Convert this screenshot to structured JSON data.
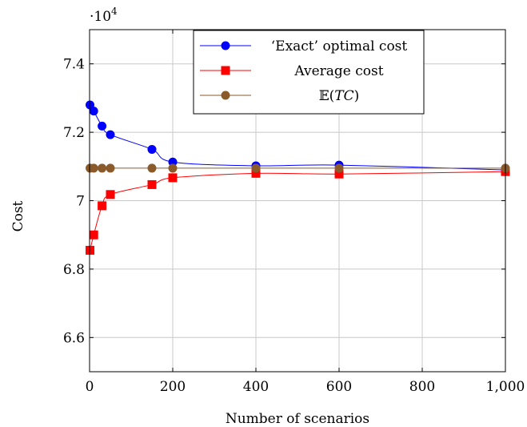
{
  "chart_data": {
    "type": "line",
    "xlabel": "Number of scenarios",
    "ylabel": "Cost",
    "y_multiplier_label": "·10",
    "y_multiplier_exponent": "4",
    "xlim": [
      0,
      1000
    ],
    "ylim": [
      6.5,
      7.5
    ],
    "x_ticks": [
      0,
      200,
      400,
      600,
      800,
      1000
    ],
    "x_tick_labels": [
      "0",
      "200",
      "400",
      "600",
      "800",
      "1,000"
    ],
    "y_ticks": [
      6.6,
      6.8,
      7.0,
      7.2,
      7.4
    ],
    "y_tick_labels": [
      "6.6",
      "6.8",
      "7",
      "7.2",
      "7.4"
    ],
    "grid": true,
    "legend_position": "top-right",
    "series": [
      {
        "name": "‘Exact’ optimal cost",
        "color": "#0000ff",
        "marker": "circle",
        "x": [
          1,
          10,
          30,
          50,
          150,
          200,
          400,
          600,
          1000
        ],
        "y": [
          7.28,
          7.262,
          7.218,
          7.193,
          7.15,
          7.113,
          7.102,
          7.104,
          7.09
        ]
      },
      {
        "name": "Average cost",
        "color": "#ff0000",
        "marker": "square",
        "x": [
          1,
          10,
          30,
          50,
          150,
          200,
          400,
          600,
          1000
        ],
        "y": [
          6.855,
          6.9,
          6.985,
          7.018,
          7.047,
          7.067,
          7.08,
          7.078,
          7.085
        ]
      },
      {
        "name": "E(TC)",
        "legend_prefix": "𝔼(",
        "legend_italic": "TC",
        "legend_suffix": ")",
        "color": "#8b5a2b",
        "marker": "circle",
        "x": [
          1,
          10,
          30,
          50,
          150,
          200,
          400,
          600,
          1000
        ],
        "y": [
          7.095,
          7.095,
          7.095,
          7.095,
          7.095,
          7.095,
          7.095,
          7.095,
          7.095
        ]
      }
    ]
  }
}
